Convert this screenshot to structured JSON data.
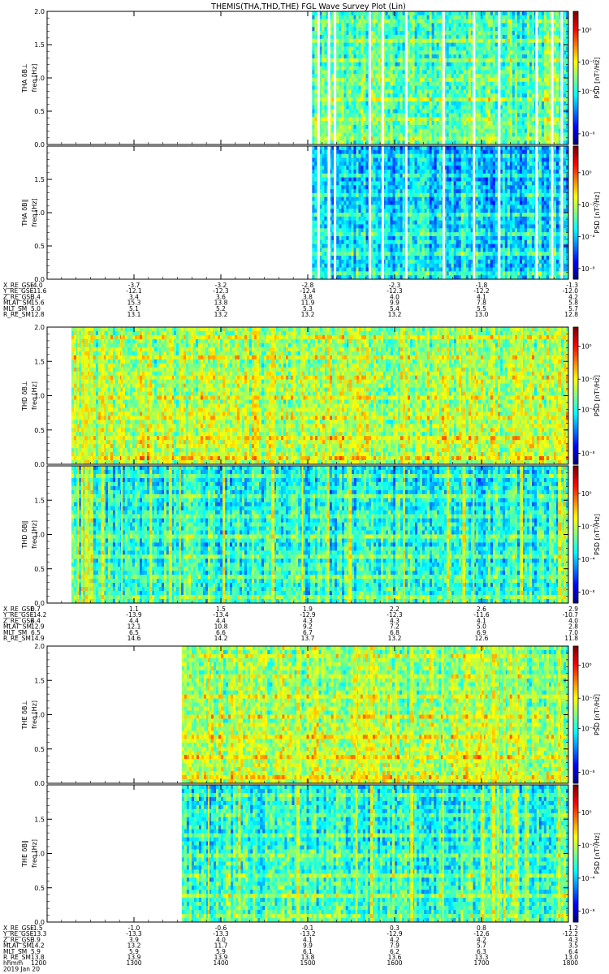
{
  "title": "THEMIS(THA,THD,THE) FGL Wave Survey Plot (Lin)",
  "colors": {
    "colorbar": [
      "#000080",
      "#0000ff",
      "#0080ff",
      "#00ffff",
      "#80ff80",
      "#ffff00",
      "#ff8000",
      "#ff0000",
      "#800000"
    ]
  },
  "colorbar": {
    "label": "PSD [nT²/Hz]",
    "ticks": [
      {
        "text": "10⁻⁸",
        "frac": 0.08
      },
      {
        "text": "10⁻⁴",
        "frac": 0.4
      },
      {
        "text": "10⁻²",
        "frac": 0.62
      },
      {
        "text": "10⁰",
        "frac": 0.86
      }
    ],
    "ticks_lower": [
      {
        "text": "10⁻⁸",
        "frac": 0.08
      },
      {
        "text": "10⁻⁴",
        "frac": 0.32
      },
      {
        "text": "10⁻²",
        "frac": 0.56
      },
      {
        "text": "10⁰",
        "frac": 0.8
      }
    ]
  },
  "chart_data": [
    {
      "type": "heatmap",
      "probe": "THA",
      "xlim": [
        1200,
        1800
      ],
      "ylabel_unit": "freq [Hz]",
      "ylim": [
        0,
        2
      ],
      "yticks": [
        "0.0",
        "0.5",
        "1.0",
        "1.5",
        "2.0"
      ],
      "panels": [
        {
          "name": "THA δB⊥",
          "ylabel": "THA δB⊥",
          "data_start": 1505,
          "bias": 0.42,
          "gaps": [
            1511,
            1523,
            1530,
            1570,
            1585,
            1612,
            1655,
            1690,
            1719,
            1762,
            1780,
            1791
          ],
          "bright": []
        },
        {
          "name": "THA δB∥",
          "ylabel": "THA δB∥",
          "data_start": 1505,
          "bias": 0.3,
          "gaps": [
            1511,
            1523,
            1530,
            1570,
            1585,
            1612,
            1655,
            1690,
            1719,
            1762,
            1780,
            1791
          ],
          "bright": []
        }
      ],
      "ephemeris": [
        {
          "label": "X_RE_GSE",
          "values": [
            "-4.0",
            "-3.7",
            "-3.2",
            "-2.8",
            "-2.3",
            "-1.8",
            "-1.3"
          ]
        },
        {
          "label": "Y_RE_GSE",
          "values": [
            "-11.6",
            "-12.1",
            "-12.3",
            "-12.4",
            "-12.3",
            "-12.2",
            "-12.0"
          ]
        },
        {
          "label": "Z_RE_GSE",
          "values": [
            "3.4",
            "3.4",
            "3.6",
            "3.8",
            "4.0",
            "4.1",
            "4.2"
          ]
        },
        {
          "label": "MLAT_SM",
          "values": [
            "15.6",
            "15.3",
            "13.8",
            "11.9",
            "9.9",
            "7.8",
            "5.8"
          ]
        },
        {
          "label": "MLT_SM",
          "values": [
            "5.0",
            "5.1",
            "5.2",
            "5.3",
            "5.4",
            "5.5",
            "5.7"
          ]
        },
        {
          "label": "R_RE_SM",
          "values": [
            "12.8",
            "13.1",
            "13.2",
            "13.2",
            "13.2",
            "13.0",
            "12.8"
          ]
        }
      ]
    },
    {
      "type": "heatmap",
      "probe": "THD",
      "xlim": [
        1200,
        1800
      ],
      "ylabel_unit": "freq [Hz]",
      "ylim": [
        0,
        2
      ],
      "yticks": [
        "0.0",
        "0.5",
        "1.0",
        "1.5",
        "2.0"
      ],
      "panels": [
        {
          "name": "THD δB⊥",
          "ylabel": "THD δB⊥",
          "data_start": 1228,
          "bias": 0.5,
          "gaps": [],
          "bright": [
            1235,
            1239,
            1243,
            1247,
            1250,
            1262,
            1285,
            1318,
            1340,
            1352,
            1402,
            1458,
            1493,
            1522,
            1547,
            1610,
            1660,
            1678,
            1690,
            1745,
            1788,
            1795
          ]
        },
        {
          "name": "THD δB∥",
          "ylabel": "THD δB∥",
          "data_start": 1228,
          "bias": 0.36,
          "gaps": [],
          "bright": [
            1235,
            1239,
            1243,
            1247,
            1250,
            1262,
            1285,
            1318,
            1340,
            1352,
            1402,
            1458,
            1493,
            1522,
            1547,
            1610,
            1660,
            1678,
            1690,
            1745,
            1788,
            1795
          ]
        }
      ],
      "ephemeris": [
        {
          "label": "X_RE_GSE",
          "values": [
            "0.7",
            "1.1",
            "1.5",
            "1.9",
            "2.2",
            "2.6",
            "2.9"
          ]
        },
        {
          "label": "Y_RE_GSE",
          "values": [
            "-14.2",
            "-13.9",
            "-13.4",
            "-12.9",
            "-12.3",
            "-11.6",
            "-10.7"
          ]
        },
        {
          "label": "Z_RE_GSE",
          "values": [
            "4.4",
            "4.4",
            "4.4",
            "4.3",
            "4.3",
            "4.1",
            "4.0"
          ]
        },
        {
          "label": "MLAT_SM",
          "values": [
            "12.9",
            "12.1",
            "10.8",
            "9.2",
            "7.2",
            "5.0",
            "2.8"
          ]
        },
        {
          "label": "MLT_SM",
          "values": [
            "6.5",
            "6.5",
            "6.6",
            "6.7",
            "6.8",
            "6.9",
            "7.0"
          ]
        },
        {
          "label": "R_RE_SM",
          "values": [
            "14.9",
            "14.6",
            "14.2",
            "13.7",
            "13.2",
            "12.6",
            "11.8"
          ]
        }
      ]
    },
    {
      "type": "heatmap",
      "probe": "THE",
      "xlim": [
        1200,
        1800
      ],
      "ylabel_unit": "freq [Hz]",
      "ylim": [
        0,
        2
      ],
      "yticks": [
        "0.0",
        "0.5",
        "1.0",
        "1.5",
        "2.0"
      ],
      "panels": [
        {
          "name": "THE δB⊥",
          "ylabel": "THE δB⊥",
          "data_start": 1355,
          "bias": 0.5,
          "gaps": [],
          "bright": [
            1385,
            1420,
            1487,
            1555,
            1572,
            1618,
            1655,
            1700,
            1712,
            1718,
            1725,
            1738,
            1750,
            1788
          ]
        },
        {
          "name": "THE δB∥",
          "ylabel": "THE δB∥",
          "data_start": 1355,
          "bias": 0.38,
          "gaps": [],
          "bright": [
            1385,
            1420,
            1487,
            1555,
            1572,
            1618,
            1655,
            1700,
            1712,
            1718,
            1725,
            1738,
            1750,
            1788
          ]
        }
      ],
      "ephemeris": [
        {
          "label": "X_RE_GSE",
          "values": [
            "-1.5",
            "-1.0",
            "-0.6",
            "-0.1",
            "0.3",
            "0.8",
            "1.2"
          ]
        },
        {
          "label": "Y_RE_GSE",
          "values": [
            "-13.3",
            "-13.3",
            "-13.3",
            "-13.2",
            "-12.9",
            "-12.6",
            "-12.2"
          ]
        },
        {
          "label": "Z_RE_GSE",
          "values": [
            "3.9",
            "3.9",
            "4.0",
            "4.1",
            "4.2",
            "4.2",
            "4.3"
          ]
        },
        {
          "label": "MLAT_SM",
          "values": [
            "14.2",
            "13.2",
            "11.7",
            "9.9",
            "7.9",
            "5.7",
            "3.5"
          ]
        },
        {
          "label": "MLT_SM",
          "values": [
            "5.9",
            "5.9",
            "5.9",
            "6.1",
            "6.2",
            "6.3",
            "6.4"
          ]
        },
        {
          "label": "R_RE_SM",
          "values": [
            "13.8",
            "13.9",
            "13.9",
            "13.8",
            "13.6",
            "13.3",
            "13.0"
          ]
        },
        {
          "label": "hhmm",
          "values": [
            "1200",
            "1300",
            "1400",
            "1500",
            "1600",
            "1700",
            "1800"
          ]
        }
      ],
      "date": "2019 Jan 20"
    }
  ]
}
